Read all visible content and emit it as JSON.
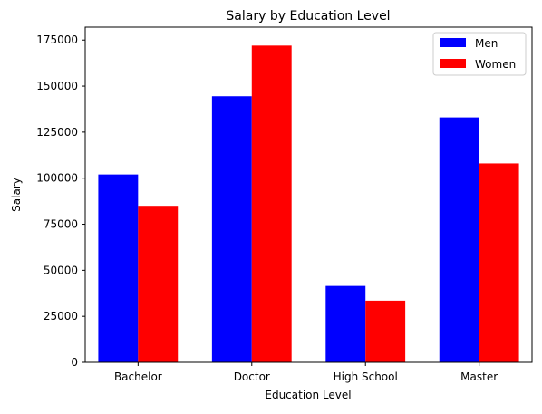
{
  "chart_data": {
    "type": "bar",
    "title": "Salary by Education Level",
    "xlabel": "Education Level",
    "ylabel": "Salary",
    "categories": [
      "Bachelor",
      "Doctor",
      "High School",
      "Master"
    ],
    "series": [
      {
        "name": "Men",
        "color": "#0000ff",
        "values": [
          102000,
          144500,
          41500,
          133000
        ]
      },
      {
        "name": "Women",
        "color": "#ff0000",
        "values": [
          85000,
          172000,
          33500,
          108000
        ]
      }
    ],
    "ylim": [
      0,
      182000
    ],
    "yticks": [
      0,
      25000,
      50000,
      75000,
      100000,
      125000,
      150000,
      175000
    ],
    "grid": false,
    "legend": "top-right"
  }
}
